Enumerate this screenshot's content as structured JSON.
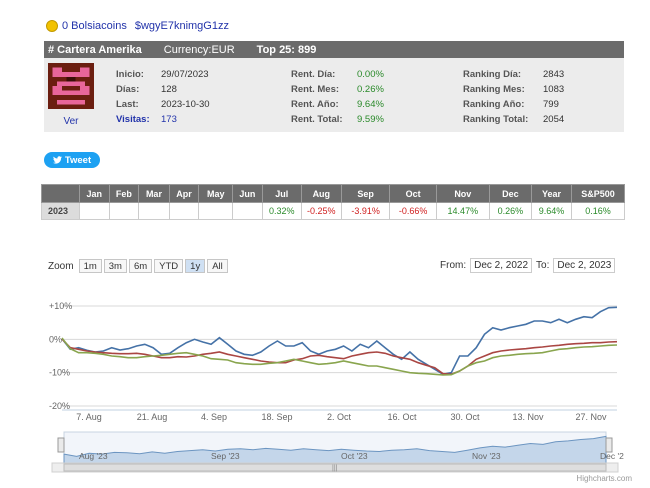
{
  "top": {
    "coins_label": "0 Bolsiacoins",
    "user_handle": "$wgyE7knimgG1zz"
  },
  "header": {
    "portfolio": "# Cartera Amerika",
    "currency": "Currency:EUR",
    "top25": "Top 25: 899"
  },
  "profile": {
    "ver": "Ver"
  },
  "stats_left": [
    {
      "label": "Inicio:",
      "value": "29/07/2023"
    },
    {
      "label": "Días:",
      "value": "128"
    },
    {
      "label": "Last:",
      "value": "2023-10-30"
    },
    {
      "label": "Visitas:",
      "value": "173"
    }
  ],
  "stats_mid": [
    {
      "label": "Rent. Día:",
      "value": "0.00%"
    },
    {
      "label": "Rent. Mes:",
      "value": "0.26%"
    },
    {
      "label": "Rent. Año:",
      "value": "9.64%"
    },
    {
      "label": "Rent. Total:",
      "value": "9.59%"
    }
  ],
  "stats_right": [
    {
      "label": "Ranking Día:",
      "value": "2843"
    },
    {
      "label": "Ranking Mes:",
      "value": "1083"
    },
    {
      "label": "Ranking Año:",
      "value": "799"
    },
    {
      "label": "Ranking Total:",
      "value": "2054"
    }
  ],
  "tweet_label": "Tweet",
  "months_table": {
    "headers": [
      "",
      "Jan",
      "Feb",
      "Mar",
      "Apr",
      "May",
      "Jun",
      "Jul",
      "Aug",
      "Sep",
      "Oct",
      "Nov",
      "Dec",
      "Year",
      "S&P500"
    ],
    "row": [
      "2023",
      "",
      "",
      "",
      "",
      "",
      "",
      "0.32%",
      "-0.25%",
      "-3.91%",
      "-0.66%",
      "14.47%",
      "0.26%",
      "9.64%",
      "0.16%"
    ]
  },
  "zoom": {
    "label": "Zoom",
    "buttons": [
      "1m",
      "3m",
      "6m",
      "YTD",
      "1y",
      "All"
    ],
    "active": "1y"
  },
  "range": {
    "from_label": "From:",
    "from_value": "Dec 2, 2022",
    "to_label": "To:",
    "to_value": "Dec 2, 2023"
  },
  "chart_data": {
    "type": "line",
    "y_tick_labels": [
      "+10%",
      "0%",
      "-10%",
      "-20%"
    ],
    "y_ticks": [
      10,
      0,
      -10,
      -20
    ],
    "ylim": [
      -20,
      10
    ],
    "x_tick_labels": [
      "7. Aug",
      "21. Aug",
      "4. Sep",
      "18. Sep",
      "2. Oct",
      "16. Oct",
      "30. Oct",
      "13. Nov",
      "27. Nov"
    ],
    "navigator_labels": [
      "Aug '23",
      "Sep '23",
      "Oct '23",
      "Nov '23",
      "Dec '2"
    ],
    "grid": true,
    "series": [
      {
        "color": "#4572a7",
        "values": [
          0.2,
          -3,
          -2.5,
          -3.3,
          -3.8,
          -3.5,
          -2.5,
          -3.2,
          -2.8,
          -2,
          -1.5,
          -2.5,
          -4.5,
          -4.2,
          -2.5,
          -1,
          0,
          -0.8,
          -1.5,
          0.5,
          -1.5,
          -3.5,
          -4.5,
          -4.8,
          -3.8,
          -2,
          -0.5,
          -2,
          -2,
          -1,
          -3.5,
          -4.5,
          -3.5,
          -3,
          -2,
          -3.5,
          -1.5,
          -2.5,
          -0.5,
          -2.5,
          -4.5,
          -6,
          -3.8,
          -6,
          -7.5,
          -9,
          -10.5,
          -10,
          -5,
          -5,
          -2.5,
          1.5,
          3.5,
          2.8,
          3.5,
          4,
          4.5,
          5.5,
          5.5,
          5,
          6,
          5,
          6,
          6.8,
          6.5,
          8.3,
          9.5,
          9.6
        ]
      },
      {
        "color": "#aa4643",
        "values": [
          0.1,
          -2.5,
          -3,
          -3.5,
          -3.8,
          -4,
          -4.2,
          -4.3,
          -4.3,
          -4.2,
          -4.5,
          -5,
          -5.5,
          -5.5,
          -5.2,
          -5.3,
          -5,
          -4.5,
          -4.2,
          -3.8,
          -4.5,
          -5,
          -5.5,
          -6,
          -6.5,
          -6.8,
          -7,
          -7,
          -6.2,
          -5.8,
          -5,
          -4.8,
          -5.2,
          -5.5,
          -5.8,
          -5,
          -4.5,
          -4,
          -3.8,
          -4.2,
          -5,
          -5.5,
          -6,
          -7,
          -7.8,
          -8.5,
          -10.3,
          -10.5,
          -9.5,
          -8,
          -6,
          -5,
          -4,
          -3.5,
          -3.2,
          -3,
          -2.8,
          -2.5,
          -2.3,
          -2,
          -1.8,
          -1.5,
          -1.3,
          -1.2,
          -1,
          -1,
          -0.8,
          -0.7
        ]
      },
      {
        "color": "#89a54e",
        "values": [
          0.4,
          -2.8,
          -4,
          -4,
          -4.2,
          -4.5,
          -5,
          -5.2,
          -5.5,
          -5.5,
          -5.2,
          -5,
          -4.8,
          -4.5,
          -4.2,
          -4,
          -4.5,
          -5,
          -5.8,
          -6,
          -6.2,
          -7,
          -7.3,
          -7.5,
          -7.5,
          -7.2,
          -7,
          -6.5,
          -6,
          -6.5,
          -7,
          -7.5,
          -7.3,
          -7,
          -6.5,
          -7,
          -7.5,
          -8,
          -8,
          -8.5,
          -9,
          -9.5,
          -10,
          -10.2,
          -10.3,
          -10.5,
          -10.7,
          -10.6,
          -9.5,
          -8,
          -7,
          -6.5,
          -5.5,
          -5,
          -4.8,
          -4.5,
          -4.3,
          -4.2,
          -4,
          -3.5,
          -3,
          -2.8,
          -2.5,
          -2.3,
          -2.2,
          -2,
          -1.8,
          -1.7
        ]
      }
    ],
    "navigator_values": [
      2,
      1.5,
      2.2,
      2.0,
      2.4,
      2.3,
      2.1,
      2.5,
      2.2,
      2.6,
      2.8,
      3.0,
      2.7,
      3.1,
      3.2,
      3.0,
      3.3,
      3.1,
      2.9,
      3.2,
      3.0,
      2.8,
      3.1,
      2.9,
      2.7,
      2.6,
      2.9,
      3.0,
      3.2,
      2.8,
      2.6,
      2.4,
      2.9,
      3.4,
      3.8,
      3.6,
      4.0,
      4.4,
      4.2,
      4.8,
      5.0,
      5.3,
      5.5,
      6.0
    ]
  },
  "credit": "Highcharts.com"
}
